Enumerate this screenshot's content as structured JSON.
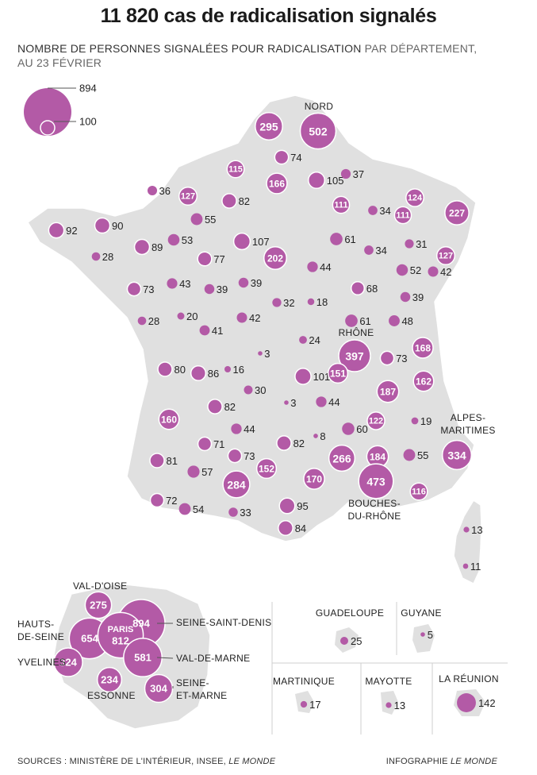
{
  "title": "11 820 cas de radicalisation signalés",
  "subtitle_main": "NOMBRE DE PERSONNES SIGNALÉES POUR RADICALISATION",
  "subtitle_light": " PAR DÉPARTEMENT,",
  "subtitle_line2": "AU 23 FÉVRIER",
  "legend": {
    "max_label": "894",
    "min_label": "100"
  },
  "colors": {
    "bubble": "#b35aa6",
    "land": "#e0e0e0",
    "border": "#ffffff"
  },
  "departments": [
    {
      "value": "295"
    },
    {
      "value": "502",
      "label": "NORD"
    },
    {
      "value": "74"
    },
    {
      "value": "115"
    },
    {
      "value": "166"
    },
    {
      "value": "105"
    },
    {
      "value": "37"
    },
    {
      "value": "124"
    },
    {
      "value": "36"
    },
    {
      "value": "127"
    },
    {
      "value": "82"
    },
    {
      "value": "111"
    },
    {
      "value": "34"
    },
    {
      "value": "111"
    },
    {
      "value": "227"
    },
    {
      "value": "55"
    },
    {
      "value": "92"
    },
    {
      "value": "90"
    },
    {
      "value": "53"
    },
    {
      "value": "107"
    },
    {
      "value": "61"
    },
    {
      "value": "31"
    },
    {
      "value": "28"
    },
    {
      "value": "89"
    },
    {
      "value": "77"
    },
    {
      "value": "202"
    },
    {
      "value": "34"
    },
    {
      "value": "127"
    },
    {
      "value": "44"
    },
    {
      "value": "52"
    },
    {
      "value": "42"
    },
    {
      "value": "73"
    },
    {
      "value": "43"
    },
    {
      "value": "39"
    },
    {
      "value": "39"
    },
    {
      "value": "68"
    },
    {
      "value": "39"
    },
    {
      "value": "32"
    },
    {
      "value": "18"
    },
    {
      "value": "28"
    },
    {
      "value": "20"
    },
    {
      "value": "41"
    },
    {
      "value": "42"
    },
    {
      "value": "61"
    },
    {
      "value": "48"
    },
    {
      "value": "397",
      "label": "RHÔNE"
    },
    {
      "value": "24"
    },
    {
      "value": "3"
    },
    {
      "value": "73"
    },
    {
      "value": "168"
    },
    {
      "value": "80"
    },
    {
      "value": "86"
    },
    {
      "value": "16"
    },
    {
      "value": "101"
    },
    {
      "value": "151"
    },
    {
      "value": "162"
    },
    {
      "value": "30"
    },
    {
      "value": "3"
    },
    {
      "value": "44"
    },
    {
      "value": "187"
    },
    {
      "value": "160"
    },
    {
      "value": "82"
    },
    {
      "value": "122"
    },
    {
      "value": "19"
    },
    {
      "value": "44"
    },
    {
      "value": "8"
    },
    {
      "value": "60"
    },
    {
      "value": "71"
    },
    {
      "value": "82"
    },
    {
      "value": "81"
    },
    {
      "value": "73"
    },
    {
      "value": "266"
    },
    {
      "value": "184"
    },
    {
      "value": "55"
    },
    {
      "value": "334",
      "label": "ALPES-MARITIMES"
    },
    {
      "value": "57"
    },
    {
      "value": "152"
    },
    {
      "value": "284"
    },
    {
      "value": "170"
    },
    {
      "value": "473",
      "label": "BOUCHES-DU-RHÔNE"
    },
    {
      "value": "72"
    },
    {
      "value": "54"
    },
    {
      "value": "33"
    },
    {
      "value": "95"
    },
    {
      "value": "116"
    },
    {
      "value": "84"
    },
    {
      "value": "13"
    },
    {
      "value": "11"
    }
  ],
  "idf": [
    {
      "value": "275",
      "label": "VAL-D'OISE"
    },
    {
      "value": "894",
      "label": "SEINE-SAINT-DENIS"
    },
    {
      "value": "654",
      "label": "HAUTS-DE-SEINE"
    },
    {
      "value": "812",
      "label": "PARIS"
    },
    {
      "value": "581",
      "label": "VAL-DE-MARNE"
    },
    {
      "value": "324",
      "label": "YVELINES"
    },
    {
      "value": "234",
      "label": "ESSONNE"
    },
    {
      "value": "304",
      "label": "SEINE-ET-MARNE"
    }
  ],
  "outremer": [
    {
      "name": "GUADELOUPE",
      "value": "25"
    },
    {
      "name": "GUYANE",
      "value": "5"
    },
    {
      "name": "MARTINIQUE",
      "value": "17"
    },
    {
      "name": "MAYOTTE",
      "value": "13"
    },
    {
      "name": "LA RÉUNION",
      "value": "142"
    }
  ],
  "footer": {
    "sources_prefix": "SOURCES : MINISTÈRE DE L'INTÉRIEUR, INSEE, ",
    "sources_italic": "LE MONDE",
    "credit_prefix": "INFOGRAPHIE ",
    "credit_italic": "LE MONDE"
  }
}
